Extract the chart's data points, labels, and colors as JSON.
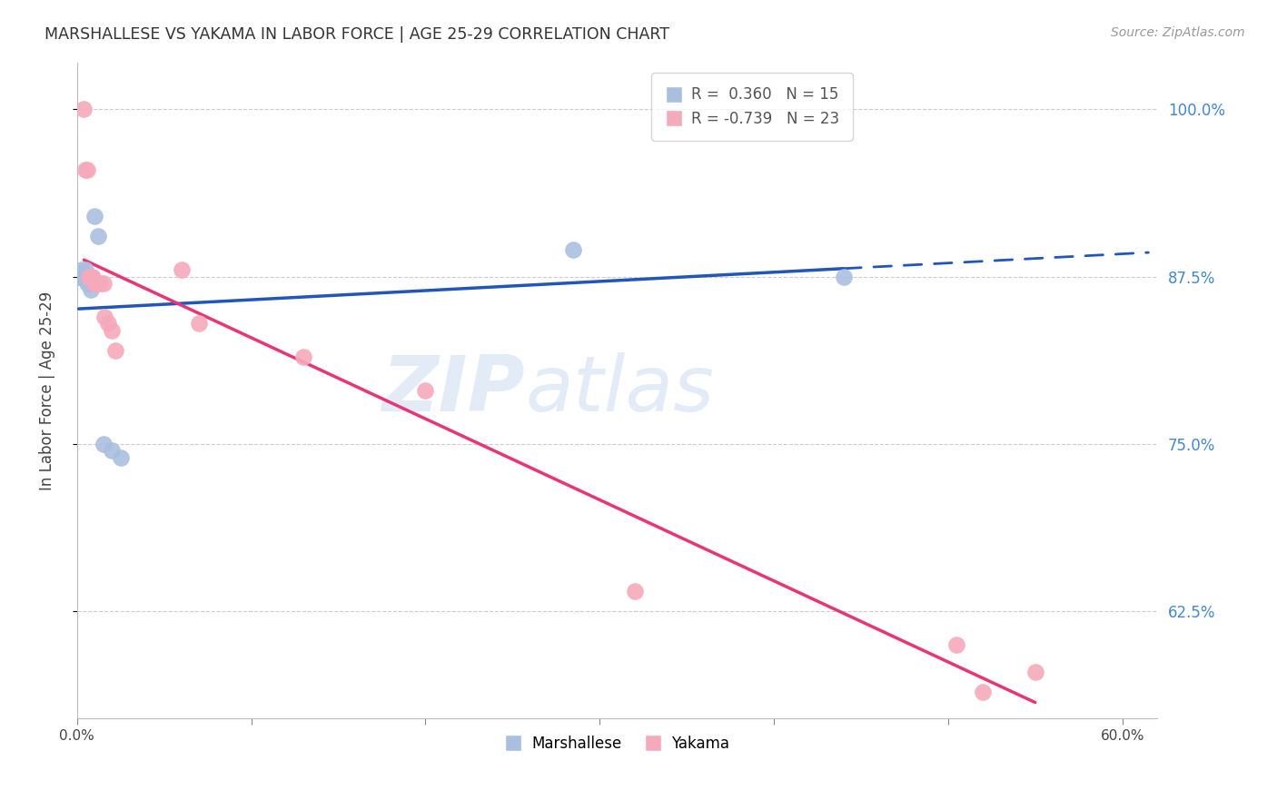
{
  "title": "MARSHALLESE VS YAKAMA IN LABOR FORCE | AGE 25-29 CORRELATION CHART",
  "source": "Source: ZipAtlas.com",
  "ylabel": "In Labor Force | Age 25-29",
  "xlim": [
    0.0,
    0.62
  ],
  "ylim": [
    0.545,
    1.035
  ],
  "yticks": [
    0.625,
    0.75,
    0.875,
    1.0
  ],
  "xticks": [
    0.0,
    0.1,
    0.2,
    0.3,
    0.4,
    0.5,
    0.6
  ],
  "marshallese_x": [
    0.001,
    0.002,
    0.003,
    0.004,
    0.005,
    0.006,
    0.007,
    0.008,
    0.01,
    0.012,
    0.015,
    0.02,
    0.025,
    0.285,
    0.44
  ],
  "marshallese_y": [
    0.875,
    0.875,
    0.88,
    0.875,
    0.88,
    0.87,
    0.87,
    0.865,
    0.92,
    0.905,
    0.75,
    0.745,
    0.74,
    0.895,
    0.875
  ],
  "yakama_x": [
    0.004,
    0.005,
    0.006,
    0.007,
    0.008,
    0.009,
    0.01,
    0.011,
    0.012,
    0.013,
    0.015,
    0.016,
    0.018,
    0.02,
    0.022,
    0.06,
    0.07,
    0.13,
    0.2,
    0.32,
    0.505,
    0.52,
    0.55
  ],
  "yakama_y": [
    1.0,
    0.955,
    0.955,
    0.875,
    0.875,
    0.875,
    0.87,
    0.87,
    0.87,
    0.87,
    0.87,
    0.845,
    0.84,
    0.835,
    0.82,
    0.88,
    0.84,
    0.815,
    0.79,
    0.64,
    0.6,
    0.565,
    0.58
  ],
  "marshallese_R": 0.36,
  "marshallese_N": 15,
  "yakama_R": -0.739,
  "yakama_N": 23,
  "blue_scatter": "#aabfe0",
  "pink_scatter": "#f5aabb",
  "blue_line": "#2255bb",
  "pink_line": "#e83575",
  "legend_labels": [
    "Marshallese",
    "Yakama"
  ],
  "background": "#ffffff",
  "grid_color": "#cccccc",
  "watermark_line1": "ZIP",
  "watermark_line2": "atlas"
}
